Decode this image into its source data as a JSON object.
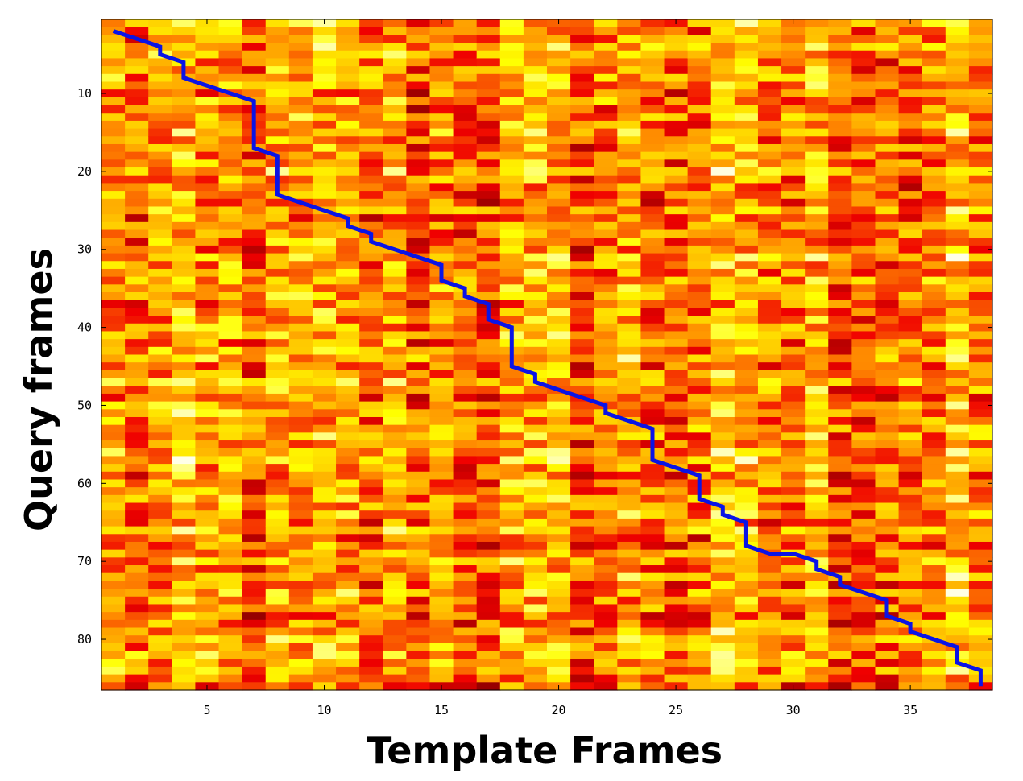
{
  "chart_data": {
    "type": "heatmap",
    "title": "",
    "xlabel": "Template Frames",
    "ylabel": "Query frames",
    "x_range": [
      0.5,
      38.5
    ],
    "y_range": [
      0.5,
      86.5
    ],
    "y_inverted": true,
    "x_ticks": [
      5,
      10,
      15,
      20,
      25,
      30,
      35
    ],
    "y_ticks": [
      10,
      20,
      30,
      40,
      50,
      60,
      70,
      80
    ],
    "n_template_frames": 38,
    "n_query_frames": 86,
    "colormap": "hot",
    "grid": false,
    "legend": "none",
    "path_color": "#0a14e6",
    "path_label": "",
    "warping_path": [
      [
        1,
        2
      ],
      [
        3,
        4
      ],
      [
        3,
        5
      ],
      [
        4,
        6
      ],
      [
        4,
        8
      ],
      [
        7,
        11
      ],
      [
        7,
        17
      ],
      [
        8,
        18
      ],
      [
        8,
        23
      ],
      [
        11,
        26
      ],
      [
        11,
        27
      ],
      [
        12,
        28
      ],
      [
        12,
        29
      ],
      [
        15,
        32
      ],
      [
        15,
        34
      ],
      [
        16,
        35
      ],
      [
        16,
        36
      ],
      [
        17,
        37
      ],
      [
        17,
        39
      ],
      [
        18,
        40
      ],
      [
        18,
        45
      ],
      [
        19,
        46
      ],
      [
        19,
        47
      ],
      [
        22,
        50
      ],
      [
        22,
        51
      ],
      [
        24,
        53
      ],
      [
        24,
        57
      ],
      [
        26,
        59
      ],
      [
        26,
        62
      ],
      [
        27,
        63
      ],
      [
        27,
        64
      ],
      [
        28,
        65
      ],
      [
        28,
        68
      ],
      [
        29,
        69
      ],
      [
        30,
        69
      ],
      [
        31,
        70
      ],
      [
        31,
        71
      ],
      [
        32,
        72
      ],
      [
        32,
        73
      ],
      [
        34,
        75
      ],
      [
        34,
        77
      ],
      [
        35,
        78
      ],
      [
        35,
        79
      ],
      [
        37,
        81
      ],
      [
        37,
        83
      ],
      [
        38,
        84
      ],
      [
        38,
        86
      ]
    ]
  }
}
